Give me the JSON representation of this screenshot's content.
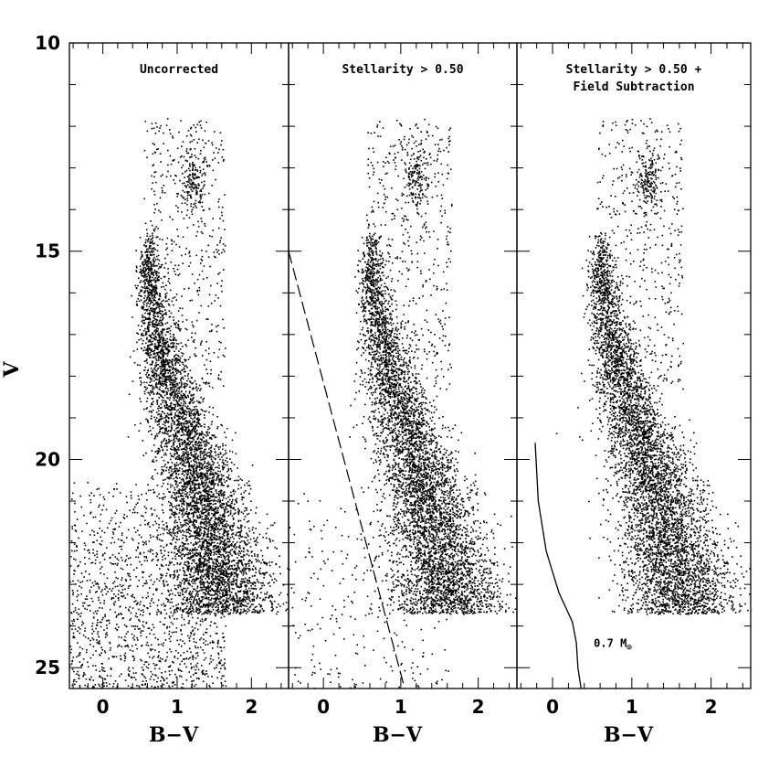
{
  "chart_data": [
    {
      "type": "scatter",
      "panel_index": 0,
      "title": "Uncorrected",
      "xlabel": "B−V",
      "ylabel": "V",
      "xlim": [
        -0.45,
        2.5
      ],
      "ylim": [
        25.5,
        10
      ],
      "x_ticks": [
        "0",
        "1",
        "2"
      ],
      "y_ticks": [
        "10",
        "15",
        "20",
        "25"
      ],
      "points_note": "dense stellar sequence: main-sequence turnoff near V=15.5, B-V~0.6; red branch to V~23, B-V~1.6; red clump near V~13.2, B-V~1.2; blue field scatter at faint magnitudes",
      "sequence": [
        {
          "v": 14.6,
          "bv": 0.62
        },
        {
          "v": 15.5,
          "bv": 0.6
        },
        {
          "v": 16.5,
          "bv": 0.68
        },
        {
          "v": 17.5,
          "bv": 0.8
        },
        {
          "v": 18.5,
          "bv": 0.95
        },
        {
          "v": 19.5,
          "bv": 1.1
        },
        {
          "v": 20.5,
          "bv": 1.28
        },
        {
          "v": 21.5,
          "bv": 1.42
        },
        {
          "v": 22.5,
          "bv": 1.55
        },
        {
          "v": 23.3,
          "bv": 1.62
        }
      ],
      "field_component": true
    },
    {
      "type": "scatter",
      "panel_index": 1,
      "title": "Stellarity > 0.50",
      "xlabel": "B−V",
      "xlim": [
        -0.45,
        2.5
      ],
      "ylim": [
        25.5,
        10
      ],
      "x_ticks": [
        "0",
        "1",
        "2"
      ],
      "sequence": [
        {
          "v": 14.6,
          "bv": 0.62
        },
        {
          "v": 15.5,
          "bv": 0.6
        },
        {
          "v": 16.5,
          "bv": 0.68
        },
        {
          "v": 17.5,
          "bv": 0.8
        },
        {
          "v": 18.5,
          "bv": 0.95
        },
        {
          "v": 19.5,
          "bv": 1.1
        },
        {
          "v": 20.5,
          "bv": 1.28
        },
        {
          "v": 21.5,
          "bv": 1.42
        },
        {
          "v": 22.5,
          "bv": 1.55
        },
        {
          "v": 23.3,
          "bv": 1.62
        }
      ],
      "field_component": true,
      "dashed_line": [
        {
          "bv": -0.45,
          "v": 15.0
        },
        {
          "bv": 1.05,
          "v": 25.5
        }
      ]
    },
    {
      "type": "scatter",
      "panel_index": 2,
      "title": [
        "Stellarity > 0.50 +",
        "Field Subtraction"
      ],
      "xlabel": "B−V",
      "xlim": [
        -0.45,
        2.5
      ],
      "ylim": [
        25.5,
        10
      ],
      "x_ticks": [
        "0",
        "1",
        "2"
      ],
      "sequence": [
        {
          "v": 14.6,
          "bv": 0.62
        },
        {
          "v": 15.5,
          "bv": 0.6
        },
        {
          "v": 16.5,
          "bv": 0.68
        },
        {
          "v": 17.5,
          "bv": 0.8
        },
        {
          "v": 18.5,
          "bv": 0.95
        },
        {
          "v": 19.5,
          "bv": 1.1
        },
        {
          "v": 20.5,
          "bv": 1.28
        },
        {
          "v": 21.5,
          "bv": 1.42
        },
        {
          "v": 22.5,
          "bv": 1.55
        },
        {
          "v": 23.3,
          "bv": 1.62
        }
      ],
      "field_component": false,
      "solid_curve": [
        {
          "bv": -0.22,
          "v": 19.6
        },
        {
          "bv": -0.18,
          "v": 21.0
        },
        {
          "bv": -0.08,
          "v": 22.2
        },
        {
          "bv": 0.08,
          "v": 23.2
        },
        {
          "bv": 0.25,
          "v": 23.9
        },
        {
          "bv": 0.3,
          "v": 24.4
        },
        {
          "bv": 0.32,
          "v": 25.0
        },
        {
          "bv": 0.36,
          "v": 25.5
        }
      ],
      "annotation": {
        "text": "0.7 M",
        "subscript": "⊙",
        "bv": 0.52,
        "v": 24.5
      }
    }
  ]
}
